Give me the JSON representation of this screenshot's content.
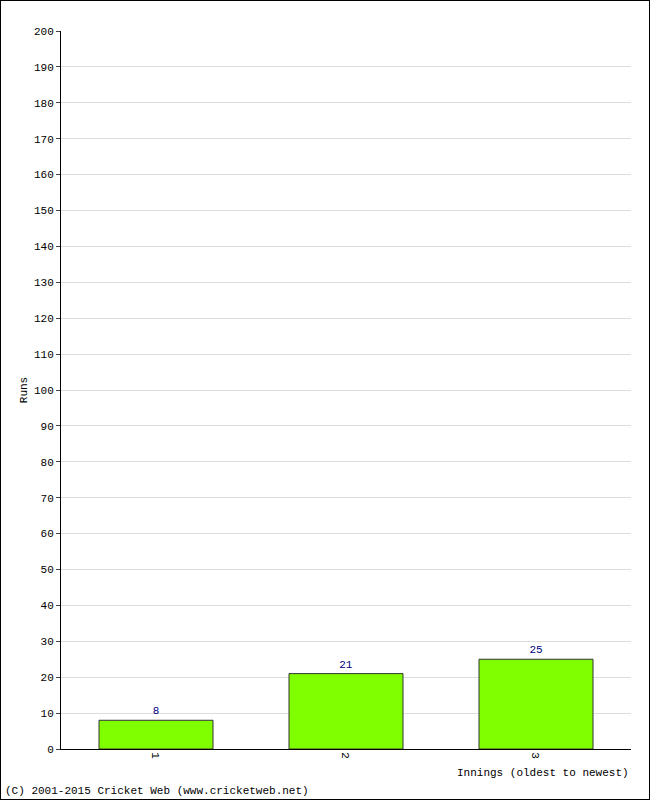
{
  "chart_data": {
    "type": "bar",
    "categories": [
      "1",
      "2",
      "3"
    ],
    "values": [
      8,
      21,
      25
    ],
    "color": "#80ff00",
    "x_label": "Innings (oldest to newest)",
    "y_label": "Runs",
    "annotations": [
      "(C) 2001-2015 Cricket Web (www.cricketweb.net)"
    ],
    "ylim": [
      0,
      200
    ],
    "yticks": [
      0,
      10,
      20,
      30,
      40,
      50,
      60,
      70,
      80,
      90,
      100,
      110,
      120,
      130,
      140,
      150,
      160,
      170,
      180,
      190,
      200
    ],
    "grid": true,
    "data_labels": true
  }
}
